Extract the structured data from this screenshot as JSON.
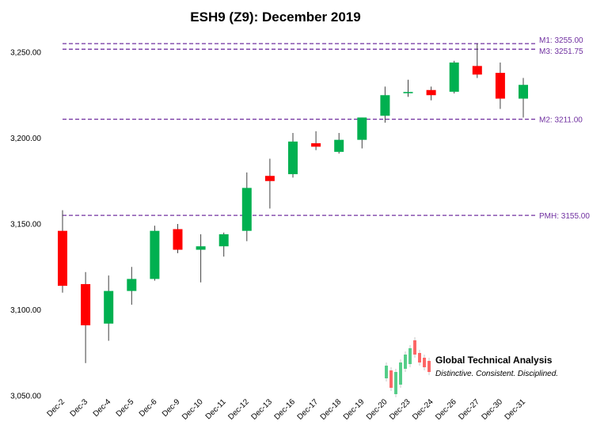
{
  "chart_data": {
    "type": "candlestick",
    "title": "ESH9 (Z9): December 2019",
    "xlabel": "",
    "ylabel": "",
    "ylim": [
      3050,
      3250
    ],
    "yticks": [
      "3,050.00",
      "3,100.00",
      "3,150.00",
      "3,200.00",
      "3,250.00"
    ],
    "ytick_values": [
      3050,
      3100,
      3150,
      3200,
      3250
    ],
    "grid": false,
    "colors": {
      "up": "#00b050",
      "down": "#ff0000",
      "wick": "#404040",
      "level": "#7030a0"
    },
    "categories": [
      "Dec-2",
      "Dec-3",
      "Dec-4",
      "Dec-5",
      "Dec-6",
      "Dec-9",
      "Dec-10",
      "Dec-11",
      "Dec-12",
      "Dec-13",
      "Dec-16",
      "Dec-17",
      "Dec-18",
      "Dec-19",
      "Dec-20",
      "Dec-23",
      "Dec-24",
      "Dec-26",
      "Dec-27",
      "Dec-30",
      "Dec-31"
    ],
    "open": [
      3146,
      3115,
      3092,
      3111,
      3118,
      3147,
      3135,
      3137,
      3146,
      3178,
      3179,
      3197,
      3192,
      3199,
      3213,
      3226.5,
      3228,
      3227,
      3242,
      3238,
      3223
    ],
    "close": [
      3114,
      3091,
      3111,
      3118,
      3146,
      3135,
      3137,
      3144,
      3171,
      3175,
      3198,
      3195,
      3199,
      3212,
      3225,
      3226.5,
      3225,
      3244,
      3237,
      3223,
      3231
    ],
    "high": [
      3158,
      3122,
      3120,
      3125,
      3149,
      3150,
      3144,
      3145,
      3180,
      3188,
      3203,
      3204,
      3203,
      3212,
      3230,
      3234,
      3230,
      3245,
      3255,
      3244,
      3235
    ],
    "low": [
      3110,
      3069,
      3082,
      3103,
      3117,
      3133,
      3116,
      3131,
      3140,
      3159,
      3177,
      3193,
      3191,
      3194,
      3209,
      3224,
      3222,
      3226,
      3235,
      3217,
      3212
    ],
    "levels": [
      {
        "name": "M1",
        "value": 3255.0,
        "label": "M1: 3255.00"
      },
      {
        "name": "M3",
        "value": 3251.75,
        "label": "M3: 3251.75"
      },
      {
        "name": "M2",
        "value": 3211.0,
        "label": "M2: 3211.00"
      },
      {
        "name": "PMH",
        "value": 3155.0,
        "label": "PMH: 3155.00"
      }
    ]
  },
  "brand": {
    "name": "Global Technical Analysis",
    "tagline": "Distinctive. Consistent. Disciplined."
  }
}
